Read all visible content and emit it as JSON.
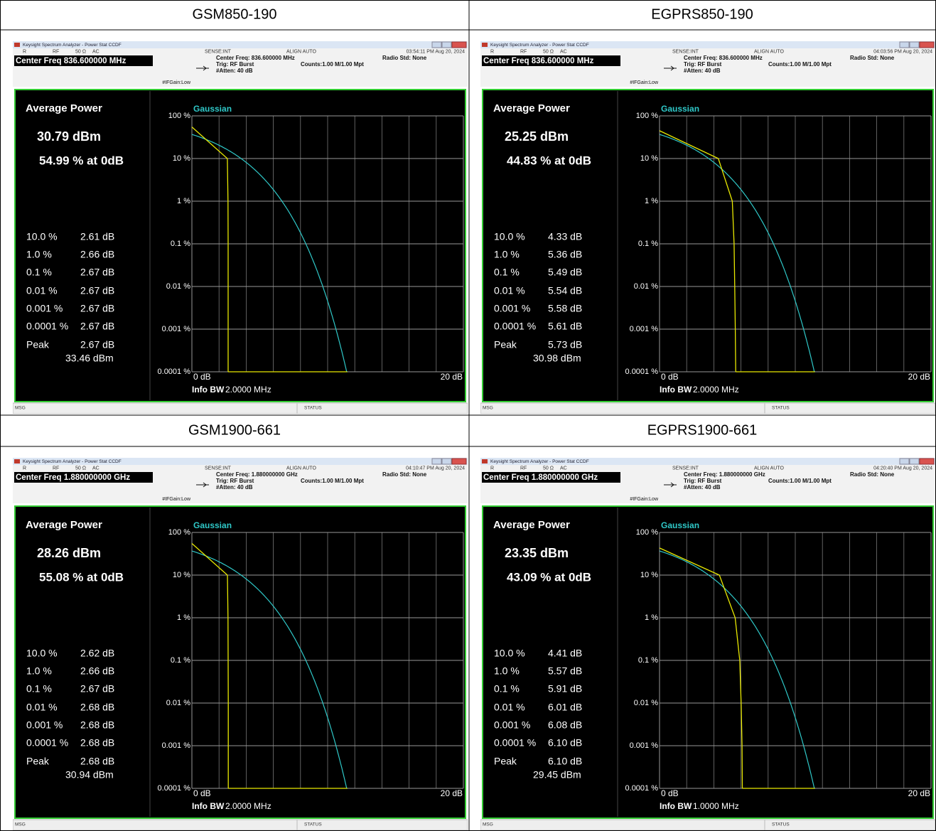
{
  "panels": [
    {
      "caption": "GSM850-190",
      "window_title": "Keysight Spectrum Analyzer - Power Stat CCDF",
      "status_line": [
        "R",
        "RF",
        "50 Ω",
        "AC",
        "SENSE:INT",
        "ALIGN AUTO"
      ],
      "timestamp": "03:54:11 PM Aug 20, 2024",
      "center_freq_box": "Center Freq 836.600000 MHz",
      "center_freq": "Center Freq: 836.600000 MHz",
      "trig": "Trig: RF Burst",
      "atten": "#Atten: 40 dB",
      "counts": "Counts:1.00 M/1.00 Mpt",
      "radio_std": "Radio Std: None",
      "if_gain": "#IFGain:Low",
      "average_power_label": "Average Power",
      "average_power": "30.79 dBm",
      "at_0db": {
        "value": 54.99,
        "label": "54.99 % at 0dB"
      },
      "ccdf": {
        "type": "line",
        "levels": [
          10,
          1,
          0.1,
          0.01,
          0.001,
          0.0001
        ],
        "level_labels": [
          "10.0 %",
          "1.0 %",
          "0.1 %",
          "0.01 %",
          "0.001 %",
          "0.0001 %"
        ],
        "values": [
          2.61,
          2.66,
          2.67,
          2.67,
          2.67,
          2.67
        ],
        "value_labels": [
          "2.61 dB",
          "2.66 dB",
          "2.67 dB",
          "2.67 dB",
          "2.67 dB",
          "2.67 dB"
        ],
        "color": "#e8e800"
      },
      "peak_label": "Peak",
      "peak": "2.67 dB",
      "peak_power": "33.46 dBm",
      "trace_label": "Gaussian",
      "trace_color": "#2fc8c8",
      "log_y": true,
      "ylim": [
        0.0001,
        100
      ],
      "yticks": [
        {
          "value": 100,
          "label": "100 %"
        },
        {
          "value": 10,
          "label": "10 %"
        },
        {
          "value": 1,
          "label": "1 %"
        },
        {
          "value": 0.1,
          "label": "0.1 %"
        },
        {
          "value": 0.01,
          "label": "0.01 %"
        },
        {
          "value": 0.001,
          "label": "0.001 %"
        },
        {
          "value": 0.0001,
          "label": "0.0001 %"
        }
      ],
      "xlim": [
        0,
        20
      ],
      "xticks": [
        {
          "value": 0,
          "label": "0 dB"
        },
        {
          "value": 20,
          "label": "20 dB"
        }
      ],
      "info_bw_label": "Info BW",
      "info_bw": "2.0000 MHz",
      "msg": "MSG",
      "status": "STATUS"
    },
    {
      "caption": "EGPRS850-190",
      "window_title": "Keysight Spectrum Analyzer - Power Stat CCDF",
      "status_line": [
        "R",
        "RF",
        "50 Ω",
        "AC",
        "SENSE:INT",
        "ALIGN AUTO"
      ],
      "timestamp": "04:03:56 PM Aug 20, 2024",
      "center_freq_box": "Center Freq 836.600000 MHz",
      "center_freq": "Center Freq: 836.600000 MHz",
      "trig": "Trig: RF Burst",
      "atten": "#Atten: 40 dB",
      "counts": "Counts:1.00 M/1.00 Mpt",
      "radio_std": "Radio Std: None",
      "if_gain": "#IFGain:Low",
      "average_power_label": "Average Power",
      "average_power": "25.25 dBm",
      "at_0db": {
        "value": 44.83,
        "label": "44.83 % at 0dB"
      },
      "ccdf": {
        "type": "line",
        "levels": [
          10,
          1,
          0.1,
          0.01,
          0.001,
          0.0001
        ],
        "level_labels": [
          "10.0 %",
          "1.0 %",
          "0.1 %",
          "0.01 %",
          "0.001 %",
          "0.0001 %"
        ],
        "values": [
          4.33,
          5.36,
          5.49,
          5.54,
          5.58,
          5.61
        ],
        "value_labels": [
          "4.33 dB",
          "5.36 dB",
          "5.49 dB",
          "5.54 dB",
          "5.58 dB",
          "5.61 dB"
        ],
        "color": "#e8e800"
      },
      "peak_label": "Peak",
      "peak": "5.73 dB",
      "peak_power": "30.98 dBm",
      "trace_label": "Gaussian",
      "trace_color": "#2fc8c8",
      "log_y": true,
      "ylim": [
        0.0001,
        100
      ],
      "yticks": [
        {
          "value": 100,
          "label": "100 %"
        },
        {
          "value": 10,
          "label": "10 %"
        },
        {
          "value": 1,
          "label": "1 %"
        },
        {
          "value": 0.1,
          "label": "0.1 %"
        },
        {
          "value": 0.01,
          "label": "0.01 %"
        },
        {
          "value": 0.001,
          "label": "0.001 %"
        },
        {
          "value": 0.0001,
          "label": "0.0001 %"
        }
      ],
      "xlim": [
        0,
        20
      ],
      "xticks": [
        {
          "value": 0,
          "label": "0 dB"
        },
        {
          "value": 20,
          "label": "20 dB"
        }
      ],
      "info_bw_label": "Info BW",
      "info_bw": "2.0000 MHz",
      "msg": "MSG",
      "status": "STATUS"
    },
    {
      "caption": "GSM1900-661",
      "window_title": "Keysight Spectrum Analyzer - Power Stat CCDF",
      "status_line": [
        "R",
        "RF",
        "50 Ω",
        "AC",
        "SENSE:INT",
        "ALIGN AUTO"
      ],
      "timestamp": "04:10:47 PM Aug 20, 2024",
      "center_freq_box": "Center Freq 1.880000000 GHz",
      "center_freq": "Center Freq: 1.880000000 GHz",
      "trig": "Trig: RF Burst",
      "atten": "#Atten: 40 dB",
      "counts": "Counts:1.00 M/1.00 Mpt",
      "radio_std": "Radio Std: None",
      "if_gain": "#IFGain:Low",
      "average_power_label": "Average Power",
      "average_power": "28.26 dBm",
      "at_0db": {
        "value": 55.08,
        "label": "55.08 % at 0dB"
      },
      "ccdf": {
        "type": "line",
        "levels": [
          10,
          1,
          0.1,
          0.01,
          0.001,
          0.0001
        ],
        "level_labels": [
          "10.0 %",
          "1.0 %",
          "0.1 %",
          "0.01 %",
          "0.001 %",
          "0.0001 %"
        ],
        "values": [
          2.62,
          2.66,
          2.67,
          2.68,
          2.68,
          2.68
        ],
        "value_labels": [
          "2.62 dB",
          "2.66 dB",
          "2.67 dB",
          "2.68 dB",
          "2.68 dB",
          "2.68 dB"
        ],
        "color": "#e8e800"
      },
      "peak_label": "Peak",
      "peak": "2.68 dB",
      "peak_power": "30.94 dBm",
      "trace_label": "Gaussian",
      "trace_color": "#2fc8c8",
      "log_y": true,
      "ylim": [
        0.0001,
        100
      ],
      "yticks": [
        {
          "value": 100,
          "label": "100 %"
        },
        {
          "value": 10,
          "label": "10 %"
        },
        {
          "value": 1,
          "label": "1 %"
        },
        {
          "value": 0.1,
          "label": "0.1 %"
        },
        {
          "value": 0.01,
          "label": "0.01 %"
        },
        {
          "value": 0.001,
          "label": "0.001 %"
        },
        {
          "value": 0.0001,
          "label": "0.0001 %"
        }
      ],
      "xlim": [
        0,
        20
      ],
      "xticks": [
        {
          "value": 0,
          "label": "0 dB"
        },
        {
          "value": 20,
          "label": "20 dB"
        }
      ],
      "info_bw_label": "Info BW",
      "info_bw": "2.0000 MHz",
      "msg": "MSG",
      "status": "STATUS"
    },
    {
      "caption": "EGPRS1900-661",
      "window_title": "Keysight Spectrum Analyzer - Power Stat CCDF",
      "status_line": [
        "R",
        "RF",
        "50 Ω",
        "AC",
        "SENSE:INT",
        "ALIGN AUTO"
      ],
      "timestamp": "04:20:40 PM Aug 20, 2024",
      "center_freq_box": "Center Freq 1.880000000 GHz",
      "center_freq": "Center Freq: 1.880000000 GHz",
      "trig": "Trig: RF Burst",
      "atten": "#Atten: 40 dB",
      "counts": "Counts:1.00 M/1.00 Mpt",
      "radio_std": "Radio Std: None",
      "if_gain": "#IFGain:Low",
      "average_power_label": "Average Power",
      "average_power": "23.35 dBm",
      "at_0db": {
        "value": 43.09,
        "label": "43.09 % at 0dB"
      },
      "ccdf": {
        "type": "line",
        "levels": [
          10,
          1,
          0.1,
          0.01,
          0.001,
          0.0001
        ],
        "level_labels": [
          "10.0 %",
          "1.0 %",
          "0.1 %",
          "0.01 %",
          "0.001 %",
          "0.0001 %"
        ],
        "values": [
          4.41,
          5.57,
          5.91,
          6.01,
          6.08,
          6.1
        ],
        "value_labels": [
          "4.41 dB",
          "5.57 dB",
          "5.91 dB",
          "6.01 dB",
          "6.08 dB",
          "6.10 dB"
        ],
        "color": "#e8e800"
      },
      "peak_label": "Peak",
      "peak": "6.10 dB",
      "peak_power": "29.45 dBm",
      "trace_label": "Gaussian",
      "trace_color": "#2fc8c8",
      "log_y": true,
      "ylim": [
        0.0001,
        100
      ],
      "yticks": [
        {
          "value": 100,
          "label": "100 %"
        },
        {
          "value": 10,
          "label": "10 %"
        },
        {
          "value": 1,
          "label": "1 %"
        },
        {
          "value": 0.1,
          "label": "0.1 %"
        },
        {
          "value": 0.01,
          "label": "0.01 %"
        },
        {
          "value": 0.001,
          "label": "0.001 %"
        },
        {
          "value": 0.0001,
          "label": "0.0001 %"
        }
      ],
      "xlim": [
        0,
        20
      ],
      "xticks": [
        {
          "value": 0,
          "label": "0 dB"
        },
        {
          "value": 20,
          "label": "20 dB"
        }
      ],
      "info_bw_label": "Info BW",
      "info_bw": "1.0000 MHz",
      "msg": "MSG",
      "status": "STATUS"
    }
  ]
}
